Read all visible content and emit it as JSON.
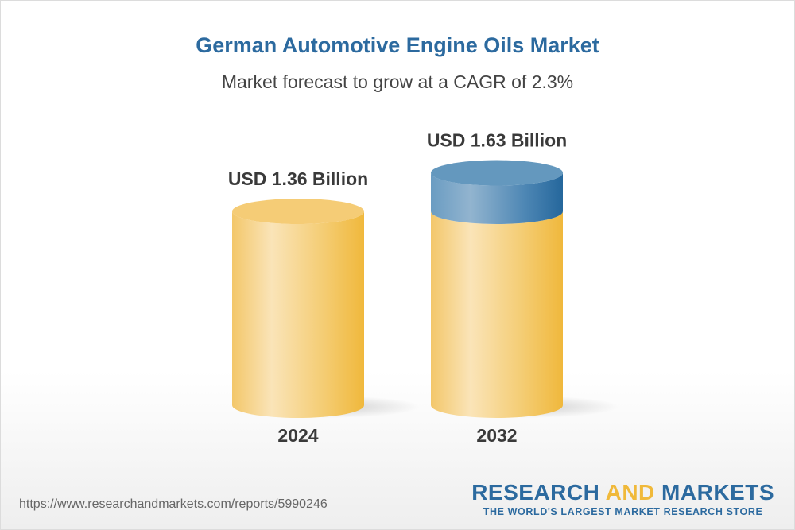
{
  "title": "German Automotive Engine Oils Market",
  "subtitle": "Market forecast to grow at a CAGR of 2.3%",
  "chart_data": {
    "type": "bar",
    "style": "3d-cylinder",
    "categories": [
      "2024",
      "2032"
    ],
    "values": [
      1.36,
      1.63
    ],
    "data_labels": [
      "USD 1.36 Billion",
      "USD 1.63 Billion"
    ],
    "unit": "USD Billion",
    "cagr": "2.3%",
    "colors": {
      "base": "#f3c15a",
      "growth": "#3f7fb0"
    },
    "grid": false
  },
  "footer": {
    "url": "https://www.researchandmarkets.com/reports/5990246",
    "logo_word1": "RESEARCH",
    "logo_word2": "AND",
    "logo_word3": "MARKETS",
    "logo_tagline": "THE WORLD'S LARGEST MARKET RESEARCH STORE"
  }
}
